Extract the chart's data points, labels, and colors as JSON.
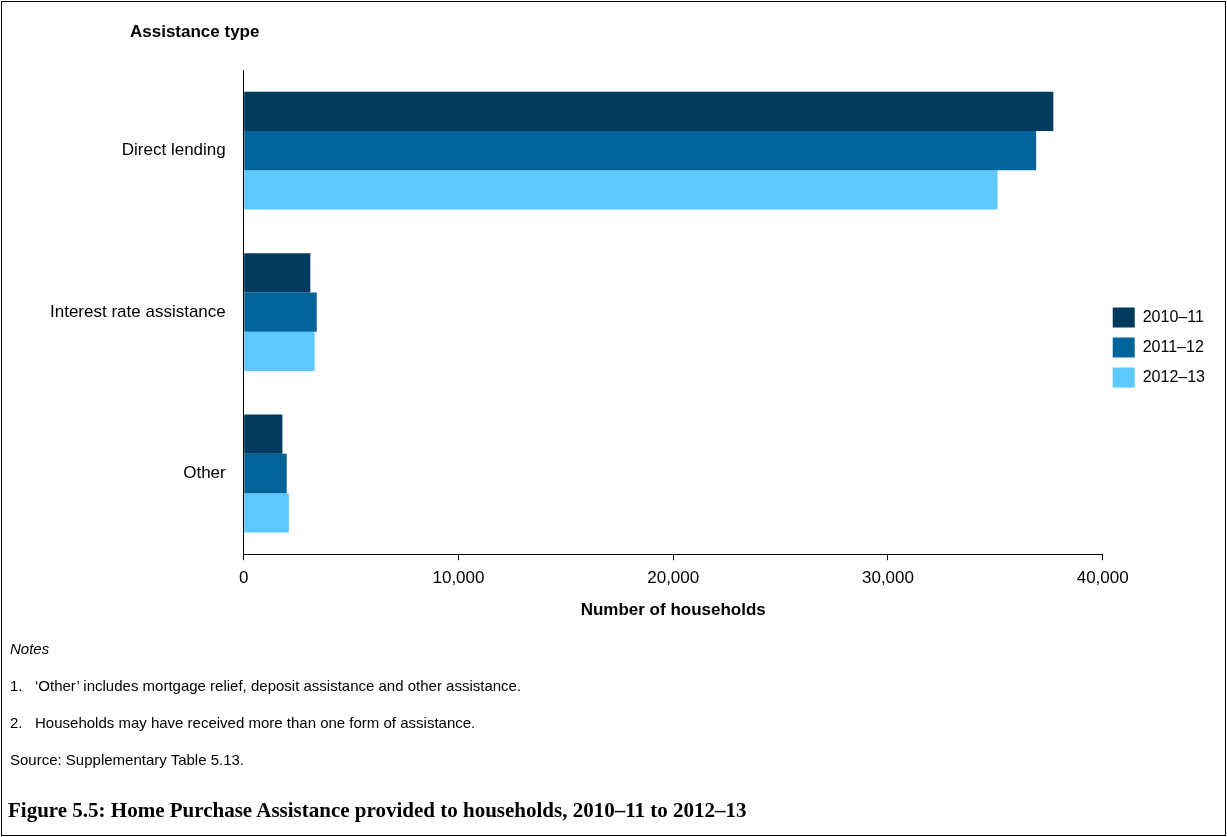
{
  "chart_data": {
    "type": "bar",
    "orientation": "horizontal",
    "title": "Figure 5.5: Home Purchase Assistance provided to households, 2010–11 to 2012–13",
    "xlabel": "Number of households",
    "ylabel": "Assistance type",
    "categories": [
      "Direct lending",
      "Interest rate assistance",
      "Other"
    ],
    "series": [
      {
        "name": "2010–11",
        "color": "#003a5d",
        "values": [
          37700,
          3100,
          1800
        ]
      },
      {
        "name": "2011–12",
        "color": "#00649b",
        "values": [
          36900,
          3400,
          2000
        ]
      },
      {
        "name": "2012–13",
        "color": "#5bc8ff",
        "values": [
          35100,
          3300,
          2100
        ]
      }
    ],
    "xlim": [
      0,
      40000
    ],
    "xticks": [
      0,
      {
        "value": 10000,
        "label": "10,000"
      },
      {
        "value": 20000,
        "label": "20,000"
      },
      {
        "value": 30000,
        "label": "30,000"
      },
      {
        "value": 40000,
        "label": "40,000"
      }
    ],
    "grid": false,
    "legend": "right",
    "annotations": [
      "Notes",
      "1.\t‘Other’ includes mortgage relief, deposit assistance and other assistance.",
      "2.\tHouseholds may have received more than one form of assistance.",
      "Source: Supplementary Table 5.13."
    ]
  }
}
